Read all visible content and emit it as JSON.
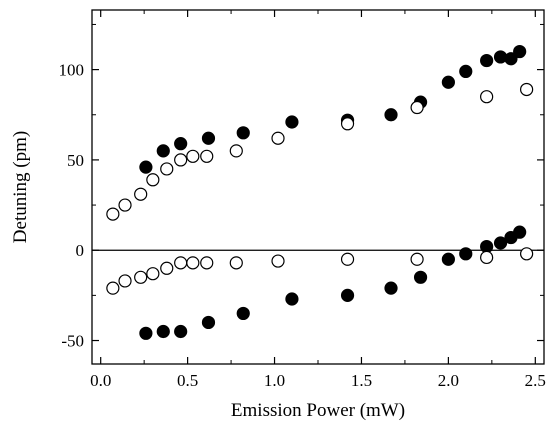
{
  "chart_data": {
    "type": "scatter",
    "title": "",
    "xlabel": "Emission Power (mW)",
    "ylabel": "Detuning (pm)",
    "xlim": [
      -0.05,
      2.55
    ],
    "ylim": [
      -63,
      133
    ],
    "xticks": [
      0.0,
      0.5,
      1.0,
      1.5,
      2.0,
      2.5
    ],
    "xtick_labels": [
      "0.0",
      "0.5",
      "1.0",
      "1.5",
      "2.0",
      "2.5"
    ],
    "yticks": [
      -50,
      0,
      50,
      100
    ],
    "ytick_labels": [
      "-50",
      "0",
      "50",
      "100"
    ],
    "reference_line_y": 0,
    "grid": false,
    "legend": "none",
    "series": [
      {
        "marker": "filled-circle",
        "color": "#000000",
        "points": [
          [
            0.26,
            46
          ],
          [
            0.36,
            55
          ],
          [
            0.46,
            59
          ],
          [
            0.62,
            62
          ],
          [
            0.82,
            65
          ],
          [
            1.1,
            71
          ],
          [
            1.42,
            72
          ],
          [
            1.67,
            75
          ],
          [
            1.84,
            82
          ],
          [
            2.0,
            93
          ],
          [
            2.1,
            99
          ],
          [
            2.22,
            105
          ],
          [
            2.3,
            107
          ],
          [
            2.36,
            106
          ],
          [
            2.41,
            110
          ],
          [
            0.26,
            -46
          ],
          [
            0.36,
            -45
          ],
          [
            0.46,
            -45
          ],
          [
            0.62,
            -40
          ],
          [
            0.82,
            -35
          ],
          [
            1.1,
            -27
          ],
          [
            1.42,
            -25
          ],
          [
            1.67,
            -21
          ],
          [
            1.84,
            -15
          ],
          [
            2.0,
            -5
          ],
          [
            2.1,
            -2
          ],
          [
            2.22,
            2
          ],
          [
            2.3,
            4
          ],
          [
            2.36,
            7
          ],
          [
            2.41,
            10
          ]
        ]
      },
      {
        "marker": "open-circle",
        "color": "#000000",
        "points": [
          [
            0.07,
            20
          ],
          [
            0.14,
            25
          ],
          [
            0.23,
            31
          ],
          [
            0.3,
            39
          ],
          [
            0.38,
            45
          ],
          [
            0.46,
            50
          ],
          [
            0.53,
            52
          ],
          [
            0.61,
            52
          ],
          [
            0.78,
            55
          ],
          [
            1.02,
            62
          ],
          [
            1.42,
            70
          ],
          [
            1.82,
            79
          ],
          [
            2.22,
            85
          ],
          [
            2.45,
            89
          ],
          [
            0.07,
            -21
          ],
          [
            0.14,
            -17
          ],
          [
            0.23,
            -15
          ],
          [
            0.3,
            -13
          ],
          [
            0.38,
            -10
          ],
          [
            0.46,
            -7
          ],
          [
            0.53,
            -7
          ],
          [
            0.61,
            -7
          ],
          [
            0.78,
            -7
          ],
          [
            1.02,
            -6
          ],
          [
            1.42,
            -5
          ],
          [
            1.82,
            -5
          ],
          [
            2.22,
            -4
          ],
          [
            2.45,
            -2
          ]
        ]
      }
    ]
  }
}
